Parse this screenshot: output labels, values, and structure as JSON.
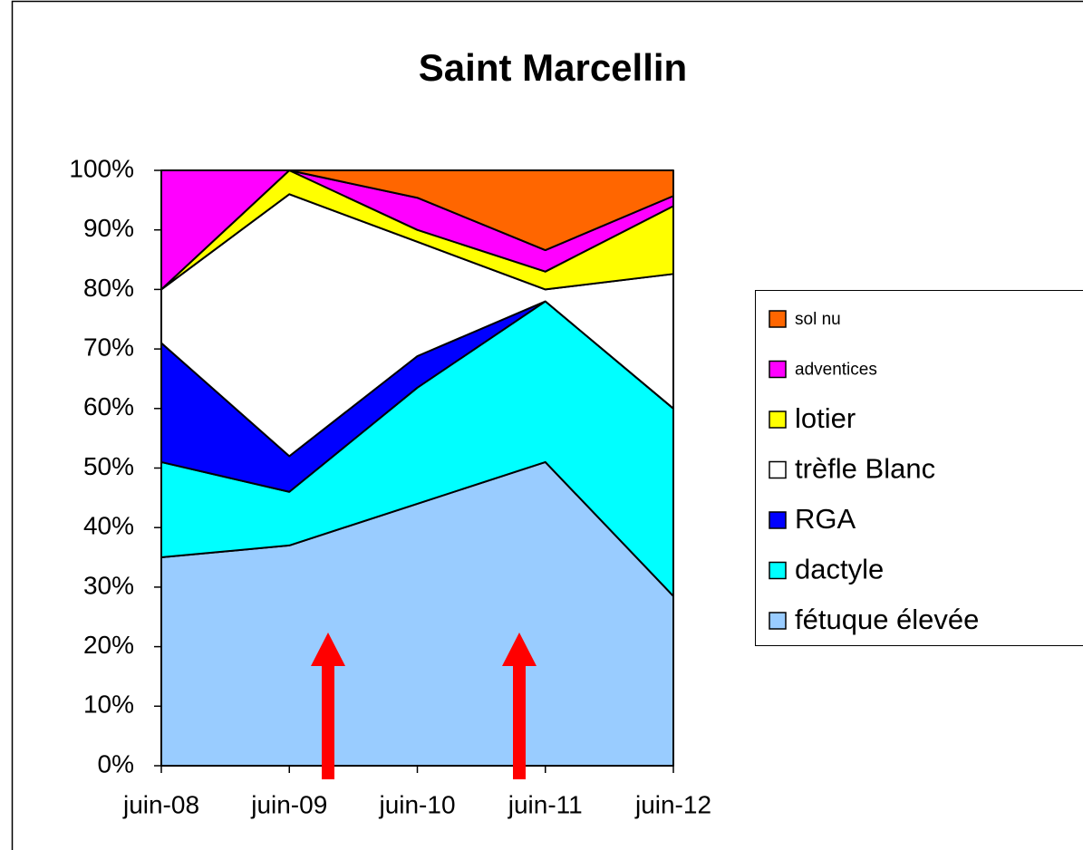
{
  "chart_data": {
    "type": "stacked_area",
    "title": "Saint Marcellin",
    "categories": [
      "juin-08",
      "juin-09",
      "juin-10",
      "juin-11",
      "juin-12"
    ],
    "series": [
      {
        "name": "fétuque élevée",
        "color": "#99ccff",
        "values": [
          35,
          37,
          44,
          51,
          28.5
        ]
      },
      {
        "name": "dactyle",
        "color": "#00ffff",
        "values": [
          16,
          9,
          19.5,
          27,
          31.5
        ]
      },
      {
        "name": "RGA",
        "color": "#0000ff",
        "values": [
          20,
          6,
          5.3,
          0,
          0
        ]
      },
      {
        "name": "trèfle Blanc",
        "color": "#ffffff",
        "values": [
          9,
          44,
          19.2,
          2,
          22.6
        ]
      },
      {
        "name": "lotier",
        "color": "#ffff00",
        "values": [
          0,
          4,
          2,
          3,
          11.4
        ]
      },
      {
        "name": "adventices",
        "color": "#ff00ff",
        "values": [
          20,
          0,
          5.4,
          3.6,
          1.7
        ]
      },
      {
        "name": "sol nu",
        "color": "#ff6600",
        "values": [
          0,
          0,
          4.6,
          13.4,
          4.3
        ]
      }
    ],
    "ylim": [
      0,
      100
    ],
    "yticks": [
      {
        "value": 0,
        "label": "0%"
      },
      {
        "value": 10,
        "label": "10%"
      },
      {
        "value": 20,
        "label": "20%"
      },
      {
        "value": 30,
        "label": "30%"
      },
      {
        "value": 40,
        "label": "40%"
      },
      {
        "value": 50,
        "label": "50%"
      },
      {
        "value": 60,
        "label": "60%"
      },
      {
        "value": 70,
        "label": "70%"
      },
      {
        "value": 80,
        "label": "80%"
      },
      {
        "value": 90,
        "label": "90%"
      },
      {
        "value": 100,
        "label": "100%"
      }
    ],
    "legend": "right"
  }
}
